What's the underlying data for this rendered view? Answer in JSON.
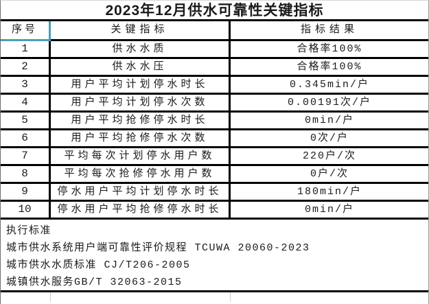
{
  "accent_color": "#45a0b5",
  "title": "2023年12月供水可靠性关键指标",
  "table": {
    "headers": {
      "no": "序号",
      "indicator": "关键指标",
      "result": "指标结果"
    },
    "rows": [
      {
        "no": "1",
        "indicator": "供水水质",
        "result": "合格率100%"
      },
      {
        "no": "2",
        "indicator": "供水水压",
        "result": "合格率100%"
      },
      {
        "no": "3",
        "indicator": "用户平均计划停水时长",
        "result": "0.345min/户"
      },
      {
        "no": "4",
        "indicator": "用户平均计划停水次数",
        "result": "0.00191次/户"
      },
      {
        "no": "5",
        "indicator": "用户平均抢修停水时长",
        "result": "0min/户"
      },
      {
        "no": "6",
        "indicator": "用户平均抢修停水次数",
        "result": "0次/户"
      },
      {
        "no": "7",
        "indicator": "平均每次计划停水用户数",
        "result": "220户/次"
      },
      {
        "no": "8",
        "indicator": "平均每次抢修停水用户数",
        "result": "0户/次"
      },
      {
        "no": "9",
        "indicator": "停水用户平均计划停水时长",
        "result": "180min/户"
      },
      {
        "no": "10",
        "indicator": "停水用户平均抢修停水时长",
        "result": "0min/户"
      }
    ]
  },
  "footer": {
    "lines": [
      "执行标准",
      "城市供水系统用户端可靠性评价规程 TCUWA 20060-2023",
      "城市供水水质标准 CJ/T206-2005",
      "城镇供水服务GB/T 32063-2015"
    ]
  }
}
